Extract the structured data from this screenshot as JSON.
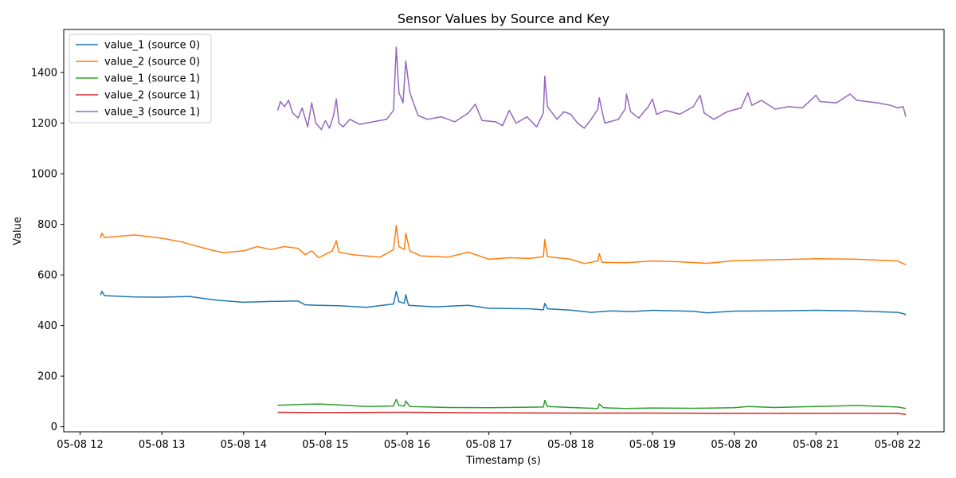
{
  "chart_data": {
    "type": "line",
    "title": "Sensor Values by Source and Key",
    "xlabel": "Timestamp (s)",
    "ylabel": "Value",
    "xlim": [
      "2024-05-08T11:48",
      "2024-05-08T22:34"
    ],
    "ylim": [
      -20,
      1570
    ],
    "x_ticks": [
      "2024-05-08T12:00",
      "2024-05-08T13:00",
      "2024-05-08T14:00",
      "2024-05-08T15:00",
      "2024-05-08T16:00",
      "2024-05-08T17:00",
      "2024-05-08T18:00",
      "2024-05-08T19:00",
      "2024-05-08T20:00",
      "2024-05-08T21:00",
      "2024-05-08T22:00"
    ],
    "x_tick_labels": [
      "05-08 12",
      "05-08 13",
      "05-08 14",
      "05-08 15",
      "05-08 16",
      "05-08 17",
      "05-08 18",
      "05-08 19",
      "05-08 20",
      "05-08 21",
      "05-08 22"
    ],
    "y_ticks": [
      0,
      200,
      400,
      600,
      800,
      1000,
      1200,
      1400
    ],
    "grid": false,
    "legend_position": "upper-left",
    "series": [
      {
        "name": "value_1 (source 0)",
        "color": "#1f77b4",
        "points": [
          [
            "2024-05-08T12:15",
            520
          ],
          [
            "2024-05-08T12:16",
            535
          ],
          [
            "2024-05-08T12:18",
            518
          ],
          [
            "2024-05-08T12:40",
            513
          ],
          [
            "2024-05-08T13:00",
            512
          ],
          [
            "2024-05-08T13:20",
            515
          ],
          [
            "2024-05-08T13:40",
            500
          ],
          [
            "2024-05-08T14:00",
            492
          ],
          [
            "2024-05-08T14:20",
            495
          ],
          [
            "2024-05-08T14:40",
            497
          ],
          [
            "2024-05-08T14:45",
            482
          ],
          [
            "2024-05-08T14:55",
            480
          ],
          [
            "2024-05-08T15:10",
            478
          ],
          [
            "2024-05-08T15:30",
            472
          ],
          [
            "2024-05-08T15:50",
            485
          ],
          [
            "2024-05-08T15:52",
            535
          ],
          [
            "2024-05-08T15:54",
            494
          ],
          [
            "2024-05-08T15:58",
            488
          ],
          [
            "2024-05-08T15:59",
            522
          ],
          [
            "2024-05-08T16:01",
            480
          ],
          [
            "2024-05-08T16:20",
            474
          ],
          [
            "2024-05-08T16:45",
            480
          ],
          [
            "2024-05-08T17:00",
            468
          ],
          [
            "2024-05-08T17:30",
            466
          ],
          [
            "2024-05-08T17:40",
            462
          ],
          [
            "2024-05-08T17:41",
            488
          ],
          [
            "2024-05-08T17:43",
            466
          ],
          [
            "2024-05-08T18:00",
            461
          ],
          [
            "2024-05-08T18:15",
            452
          ],
          [
            "2024-05-08T18:30",
            458
          ],
          [
            "2024-05-08T18:45",
            455
          ],
          [
            "2024-05-08T19:00",
            460
          ],
          [
            "2024-05-08T19:30",
            456
          ],
          [
            "2024-05-08T19:40",
            450
          ],
          [
            "2024-05-08T20:00",
            457
          ],
          [
            "2024-05-08T20:30",
            458
          ],
          [
            "2024-05-08T21:00",
            460
          ],
          [
            "2024-05-08T21:30",
            458
          ],
          [
            "2024-05-08T22:00",
            452
          ],
          [
            "2024-05-08T22:05",
            446
          ],
          [
            "2024-05-08T22:06",
            440
          ]
        ]
      },
      {
        "name": "value_2 (source 0)",
        "color": "#ff7f0e",
        "points": [
          [
            "2024-05-08T12:15",
            745
          ],
          [
            "2024-05-08T12:16",
            765
          ],
          [
            "2024-05-08T12:18",
            748
          ],
          [
            "2024-05-08T12:40",
            758
          ],
          [
            "2024-05-08T13:00",
            745
          ],
          [
            "2024-05-08T13:15",
            730
          ],
          [
            "2024-05-08T13:20",
            722
          ],
          [
            "2024-05-08T13:35",
            700
          ],
          [
            "2024-05-08T13:45",
            688
          ],
          [
            "2024-05-08T14:00",
            695
          ],
          [
            "2024-05-08T14:10",
            712
          ],
          [
            "2024-05-08T14:20",
            700
          ],
          [
            "2024-05-08T14:30",
            712
          ],
          [
            "2024-05-08T14:40",
            705
          ],
          [
            "2024-05-08T14:45",
            680
          ],
          [
            "2024-05-08T14:50",
            695
          ],
          [
            "2024-05-08T14:55",
            668
          ],
          [
            "2024-05-08T15:05",
            695
          ],
          [
            "2024-05-08T15:08",
            735
          ],
          [
            "2024-05-08T15:10",
            690
          ],
          [
            "2024-05-08T15:20",
            680
          ],
          [
            "2024-05-08T15:40",
            670
          ],
          [
            "2024-05-08T15:50",
            700
          ],
          [
            "2024-05-08T15:52",
            795
          ],
          [
            "2024-05-08T15:54",
            712
          ],
          [
            "2024-05-08T15:58",
            700
          ],
          [
            "2024-05-08T15:59",
            765
          ],
          [
            "2024-05-08T16:02",
            695
          ],
          [
            "2024-05-08T16:10",
            675
          ],
          [
            "2024-05-08T16:30",
            670
          ],
          [
            "2024-05-08T16:45",
            690
          ],
          [
            "2024-05-08T17:00",
            662
          ],
          [
            "2024-05-08T17:15",
            668
          ],
          [
            "2024-05-08T17:30",
            665
          ],
          [
            "2024-05-08T17:40",
            672
          ],
          [
            "2024-05-08T17:41",
            740
          ],
          [
            "2024-05-08T17:43",
            672
          ],
          [
            "2024-05-08T18:00",
            662
          ],
          [
            "2024-05-08T18:10",
            645
          ],
          [
            "2024-05-08T18:20",
            655
          ],
          [
            "2024-05-08T18:21",
            685
          ],
          [
            "2024-05-08T18:23",
            650
          ],
          [
            "2024-05-08T18:40",
            648
          ],
          [
            "2024-05-08T19:00",
            655
          ],
          [
            "2024-05-08T19:20",
            652
          ],
          [
            "2024-05-08T19:40",
            646
          ],
          [
            "2024-05-08T20:00",
            656
          ],
          [
            "2024-05-08T20:30",
            660
          ],
          [
            "2024-05-08T21:00",
            664
          ],
          [
            "2024-05-08T21:30",
            662
          ],
          [
            "2024-05-08T22:00",
            655
          ],
          [
            "2024-05-08T22:06",
            640
          ]
        ]
      },
      {
        "name": "value_1 (source 1)",
        "color": "#2ca02c",
        "points": [
          [
            "2024-05-08T14:25",
            85
          ],
          [
            "2024-05-08T14:40",
            88
          ],
          [
            "2024-05-08T14:55",
            90
          ],
          [
            "2024-05-08T15:10",
            86
          ],
          [
            "2024-05-08T15:30",
            80
          ],
          [
            "2024-05-08T15:50",
            82
          ],
          [
            "2024-05-08T15:52",
            108
          ],
          [
            "2024-05-08T15:54",
            84
          ],
          [
            "2024-05-08T15:58",
            82
          ],
          [
            "2024-05-08T15:59",
            102
          ],
          [
            "2024-05-08T16:02",
            80
          ],
          [
            "2024-05-08T16:30",
            76
          ],
          [
            "2024-05-08T17:00",
            75
          ],
          [
            "2024-05-08T17:40",
            78
          ],
          [
            "2024-05-08T17:41",
            104
          ],
          [
            "2024-05-08T17:43",
            80
          ],
          [
            "2024-05-08T18:00",
            76
          ],
          [
            "2024-05-08T18:20",
            72
          ],
          [
            "2024-05-08T18:21",
            90
          ],
          [
            "2024-05-08T18:24",
            75
          ],
          [
            "2024-05-08T18:40",
            72
          ],
          [
            "2024-05-08T19:00",
            74
          ],
          [
            "2024-05-08T19:30",
            73
          ],
          [
            "2024-05-08T20:00",
            75
          ],
          [
            "2024-05-08T20:10",
            80
          ],
          [
            "2024-05-08T20:30",
            76
          ],
          [
            "2024-05-08T21:00",
            80
          ],
          [
            "2024-05-08T21:30",
            84
          ],
          [
            "2024-05-08T22:00",
            78
          ],
          [
            "2024-05-08T22:06",
            72
          ]
        ]
      },
      {
        "name": "value_2 (source 1)",
        "color": "#d62728",
        "points": [
          [
            "2024-05-08T14:25",
            57
          ],
          [
            "2024-05-08T15:00",
            56
          ],
          [
            "2024-05-08T16:00",
            57
          ],
          [
            "2024-05-08T17:00",
            55
          ],
          [
            "2024-05-08T18:00",
            54
          ],
          [
            "2024-05-08T19:00",
            54
          ],
          [
            "2024-05-08T20:00",
            53
          ],
          [
            "2024-05-08T21:00",
            53
          ],
          [
            "2024-05-08T22:00",
            53
          ],
          [
            "2024-05-08T22:06",
            48
          ]
        ]
      },
      {
        "name": "value_3 (source 1)",
        "color": "#9467bd",
        "points": [
          [
            "2024-05-08T14:25",
            1250
          ],
          [
            "2024-05-08T14:27",
            1285
          ],
          [
            "2024-05-08T14:30",
            1265
          ],
          [
            "2024-05-08T14:33",
            1290
          ],
          [
            "2024-05-08T14:36",
            1240
          ],
          [
            "2024-05-08T14:40",
            1220
          ],
          [
            "2024-05-08T14:43",
            1260
          ],
          [
            "2024-05-08T14:47",
            1185
          ],
          [
            "2024-05-08T14:50",
            1280
          ],
          [
            "2024-05-08T14:53",
            1200
          ],
          [
            "2024-05-08T14:57",
            1175
          ],
          [
            "2024-05-08T15:00",
            1210
          ],
          [
            "2024-05-08T15:03",
            1180
          ],
          [
            "2024-05-08T15:06",
            1230
          ],
          [
            "2024-05-08T15:08",
            1295
          ],
          [
            "2024-05-08T15:10",
            1200
          ],
          [
            "2024-05-08T15:13",
            1185
          ],
          [
            "2024-05-08T15:18",
            1215
          ],
          [
            "2024-05-08T15:25",
            1195
          ],
          [
            "2024-05-08T15:35",
            1205
          ],
          [
            "2024-05-08T15:45",
            1215
          ],
          [
            "2024-05-08T15:50",
            1250
          ],
          [
            "2024-05-08T15:52",
            1500
          ],
          [
            "2024-05-08T15:54",
            1320
          ],
          [
            "2024-05-08T15:57",
            1280
          ],
          [
            "2024-05-08T15:59",
            1445
          ],
          [
            "2024-05-08T16:02",
            1320
          ],
          [
            "2024-05-08T16:08",
            1230
          ],
          [
            "2024-05-08T16:15",
            1215
          ],
          [
            "2024-05-08T16:25",
            1225
          ],
          [
            "2024-05-08T16:35",
            1205
          ],
          [
            "2024-05-08T16:45",
            1240
          ],
          [
            "2024-05-08T16:50",
            1275
          ],
          [
            "2024-05-08T16:55",
            1210
          ],
          [
            "2024-05-08T17:05",
            1205
          ],
          [
            "2024-05-08T17:10",
            1190
          ],
          [
            "2024-05-08T17:15",
            1250
          ],
          [
            "2024-05-08T17:20",
            1200
          ],
          [
            "2024-05-08T17:28",
            1225
          ],
          [
            "2024-05-08T17:35",
            1185
          ],
          [
            "2024-05-08T17:40",
            1240
          ],
          [
            "2024-05-08T17:41",
            1385
          ],
          [
            "2024-05-08T17:43",
            1265
          ],
          [
            "2024-05-08T17:50",
            1215
          ],
          [
            "2024-05-08T17:55",
            1245
          ],
          [
            "2024-05-08T18:00",
            1235
          ],
          [
            "2024-05-08T18:05",
            1200
          ],
          [
            "2024-05-08T18:10",
            1180
          ],
          [
            "2024-05-08T18:15",
            1215
          ],
          [
            "2024-05-08T18:20",
            1255
          ],
          [
            "2024-05-08T18:21",
            1300
          ],
          [
            "2024-05-08T18:25",
            1200
          ],
          [
            "2024-05-08T18:35",
            1215
          ],
          [
            "2024-05-08T18:40",
            1255
          ],
          [
            "2024-05-08T18:41",
            1315
          ],
          [
            "2024-05-08T18:44",
            1245
          ],
          [
            "2024-05-08T18:50",
            1220
          ],
          [
            "2024-05-08T18:57",
            1265
          ],
          [
            "2024-05-08T19:00",
            1295
          ],
          [
            "2024-05-08T19:03",
            1235
          ],
          [
            "2024-05-08T19:10",
            1250
          ],
          [
            "2024-05-08T19:20",
            1235
          ],
          [
            "2024-05-08T19:30",
            1265
          ],
          [
            "2024-05-08T19:35",
            1310
          ],
          [
            "2024-05-08T19:38",
            1240
          ],
          [
            "2024-05-08T19:45",
            1215
          ],
          [
            "2024-05-08T19:55",
            1245
          ],
          [
            "2024-05-08T20:05",
            1260
          ],
          [
            "2024-05-08T20:10",
            1320
          ],
          [
            "2024-05-08T20:13",
            1270
          ],
          [
            "2024-05-08T20:20",
            1290
          ],
          [
            "2024-05-08T20:30",
            1255
          ],
          [
            "2024-05-08T20:40",
            1265
          ],
          [
            "2024-05-08T20:50",
            1260
          ],
          [
            "2024-05-08T21:00",
            1310
          ],
          [
            "2024-05-08T21:03",
            1285
          ],
          [
            "2024-05-08T21:15",
            1280
          ],
          [
            "2024-05-08T21:25",
            1315
          ],
          [
            "2024-05-08T21:30",
            1290
          ],
          [
            "2024-05-08T21:45",
            1280
          ],
          [
            "2024-05-08T21:55",
            1270
          ],
          [
            "2024-05-08T22:00",
            1260
          ],
          [
            "2024-05-08T22:04",
            1265
          ],
          [
            "2024-05-08T22:06",
            1225
          ]
        ]
      }
    ]
  }
}
